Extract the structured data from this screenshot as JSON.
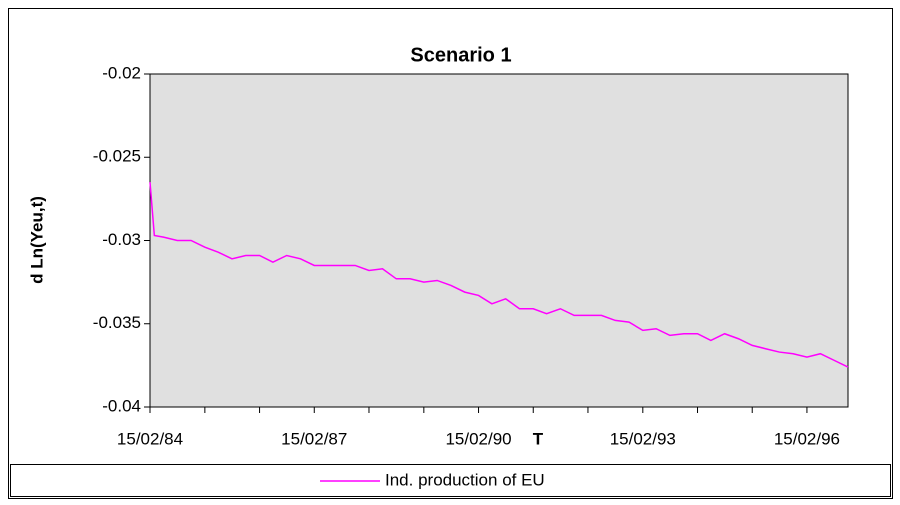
{
  "chart_data": {
    "type": "line",
    "title": "Scenario 1",
    "x_label": "T",
    "y_label": "d Ln(Yeu,t)",
    "x": [
      "1984-02-15",
      "1984-03-15",
      "1984-05-15",
      "1984-08-15",
      "1984-11-15",
      "1985-02-15",
      "1985-05-15",
      "1985-08-15",
      "1985-11-15",
      "1986-02-15",
      "1986-05-15",
      "1986-08-15",
      "1986-11-15",
      "1987-02-15",
      "1987-05-15",
      "1987-08-15",
      "1987-11-15",
      "1988-02-15",
      "1988-05-15",
      "1988-08-15",
      "1988-11-15",
      "1989-02-15",
      "1989-05-15",
      "1989-08-15",
      "1989-11-15",
      "1990-02-15",
      "1990-05-15",
      "1990-08-15",
      "1990-11-15",
      "1991-02-15",
      "1991-05-15",
      "1991-08-15",
      "1991-11-15",
      "1992-02-15",
      "1992-05-15",
      "1992-08-15",
      "1992-11-15",
      "1993-02-15",
      "1993-05-15",
      "1993-08-15",
      "1993-11-15",
      "1994-02-15",
      "1994-05-15",
      "1994-08-15",
      "1994-11-15",
      "1995-02-15",
      "1995-05-15",
      "1995-08-15",
      "1995-11-15",
      "1996-02-15",
      "1996-05-15",
      "1996-08-15",
      "1996-11-15"
    ],
    "series": [
      {
        "name": "Ind. production of EU",
        "color": "#ff00ff",
        "values": [
          -0.0265,
          -0.0297,
          -0.0298,
          -0.03,
          -0.03,
          -0.0304,
          -0.0307,
          -0.0311,
          -0.0309,
          -0.0309,
          -0.0313,
          -0.0309,
          -0.0311,
          -0.0315,
          -0.0315,
          -0.0315,
          -0.0315,
          -0.0318,
          -0.0317,
          -0.0323,
          -0.0323,
          -0.0325,
          -0.0324,
          -0.0327,
          -0.0331,
          -0.0333,
          -0.0338,
          -0.0335,
          -0.0341,
          -0.0341,
          -0.0344,
          -0.0341,
          -0.0345,
          -0.0345,
          -0.0345,
          -0.0348,
          -0.0349,
          -0.0354,
          -0.0353,
          -0.0357,
          -0.0356,
          -0.0356,
          -0.036,
          -0.0356,
          -0.0359,
          -0.0363,
          -0.0365,
          -0.0367,
          -0.0368,
          -0.037,
          -0.0368,
          -0.0372,
          -0.0376
        ]
      }
    ],
    "xlim": [
      "1984-02-15",
      "1996-11-15"
    ],
    "xticks": [
      {
        "value": "1984-02-15",
        "label": "15/02/84"
      },
      {
        "value": "1987-02-15",
        "label": "15/02/87"
      },
      {
        "value": "1990-02-15",
        "label": "15/02/90"
      },
      {
        "value": "1993-02-15",
        "label": "15/02/93"
      },
      {
        "value": "1996-02-15",
        "label": "15/02/96"
      }
    ],
    "xminorticks": [
      "1985-02-15",
      "1986-02-15",
      "1988-02-15",
      "1989-02-15",
      "1991-02-15",
      "1992-02-15",
      "1994-02-15",
      "1995-02-15"
    ],
    "ylim": [
      -0.04,
      -0.02
    ],
    "yticks": [
      -0.04,
      -0.035,
      -0.03,
      -0.025,
      -0.02
    ],
    "plot_background": "#e0e0e0",
    "legend": "bottom"
  }
}
